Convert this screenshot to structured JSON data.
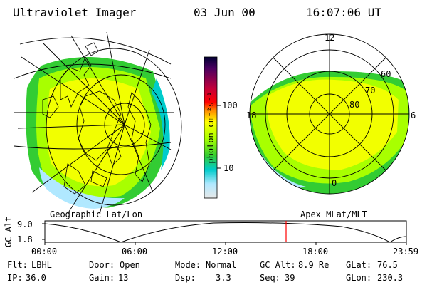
{
  "header": {
    "instrument": "Ultraviolet Imager",
    "date": "03 Jun 00",
    "time": "16:07:06 UT"
  },
  "left_panel": {
    "caption": "Geographic Lat/Lon",
    "projection": "globe-orthographic",
    "grid": true
  },
  "right_panel": {
    "caption": "Apex MLat/MLT",
    "mlt_labels": {
      "top": "12",
      "bottom": "0",
      "left": "18",
      "right": "6"
    },
    "lat_rings": [
      "60",
      "70",
      "80"
    ]
  },
  "colorbar": {
    "unit_label": "photon cm⁻²s⁻¹",
    "ticks": [
      "100",
      "10"
    ],
    "scale": "log",
    "colors": [
      "#000033",
      "#4a0060",
      "#c0003c",
      "#ff0000",
      "#ff8c00",
      "#ffff00",
      "#a8ff00",
      "#33cc33",
      "#00cccc",
      "#b0e8ff",
      "#e8e8e8"
    ]
  },
  "orbit_plot": {
    "ylabel": "GC Alt",
    "y_ticks": [
      "9.0",
      "1.8"
    ],
    "x_ticks": [
      "00:00",
      "06:00",
      "12:00",
      "18:00",
      "23:59"
    ],
    "current_time_marker_color": "#ff0000"
  },
  "status": {
    "row1": [
      {
        "label": "Flt:",
        "value": "LBHL"
      },
      {
        "label": "Door:",
        "value": "Open"
      },
      {
        "label": "Mode:",
        "value": "Normal"
      },
      {
        "label": "GC Alt:",
        "value": "8.9 Re"
      },
      {
        "label": "GLat:",
        "value": "76.5"
      }
    ],
    "row2": [
      {
        "label": "IP:",
        "value": "36.0"
      },
      {
        "label": "Gain:",
        "value": "13"
      },
      {
        "label": "Dsp:",
        "value": "3.3"
      },
      {
        "label": "Seq:",
        "value": "39"
      },
      {
        "label": "GLon:",
        "value": "230.3"
      }
    ]
  }
}
